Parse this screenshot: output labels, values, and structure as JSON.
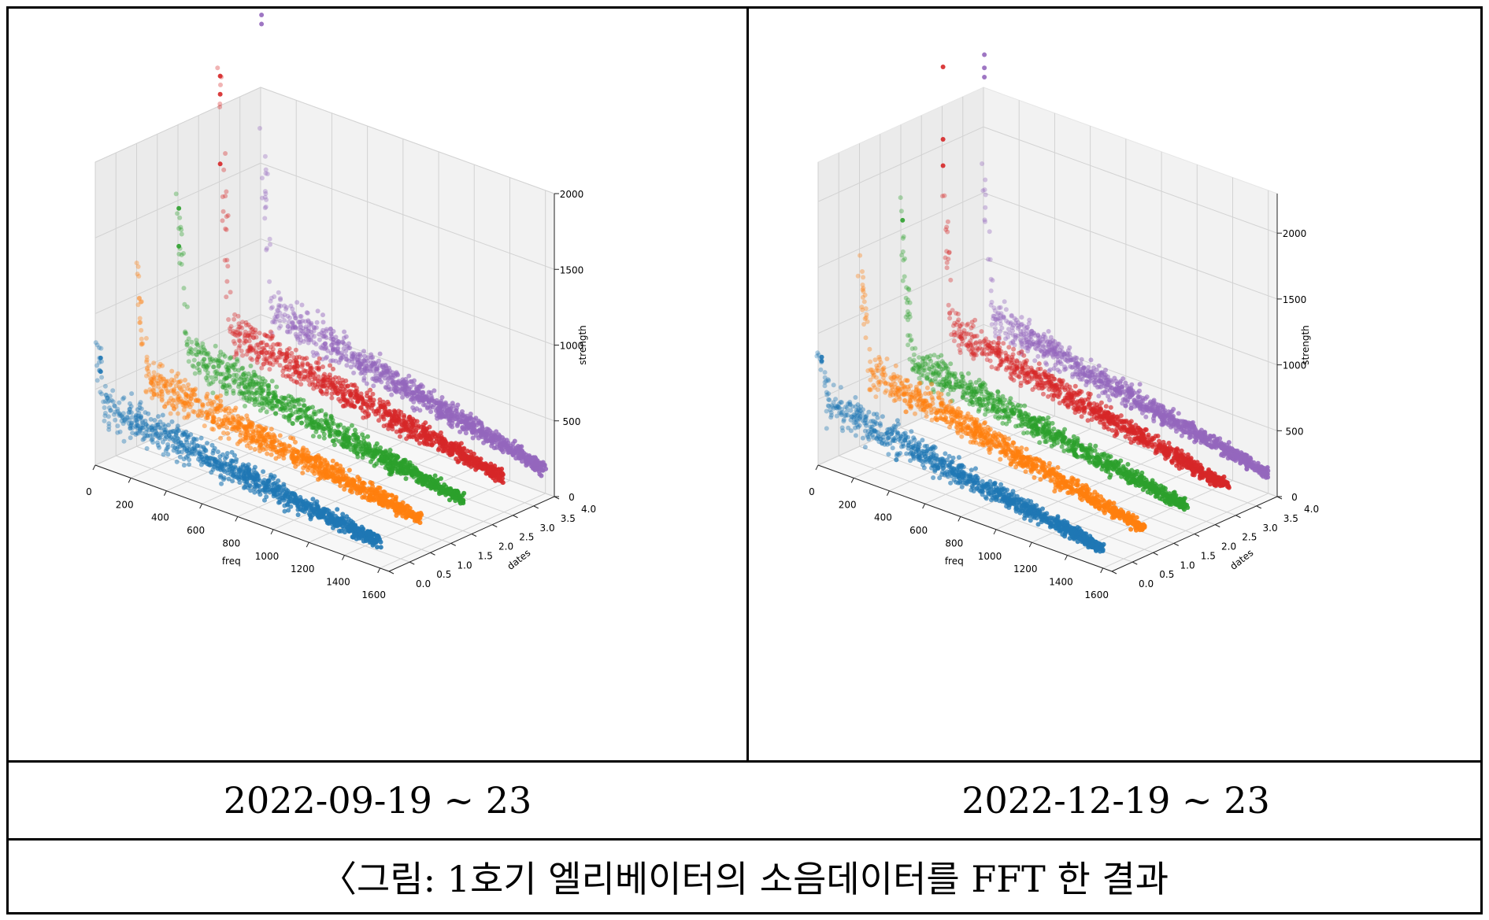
{
  "figure": {
    "caption": "〈그림: 1호기 엘리베이터의 소음데이터를 FFT 한 결과",
    "panel_captions": [
      "2022-09-19 ~ 23",
      "2022-12-19 ~ 23"
    ]
  },
  "chart_data": [
    {
      "type": "scatter3d",
      "title": "",
      "xlabel": "freq",
      "ylabel": "dates",
      "zlabel": "strength",
      "xticks": [
        "0",
        "200",
        "400",
        "600",
        "800",
        "1000",
        "1200",
        "1400",
        "1600"
      ],
      "yticks": [
        "0.0",
        "0.5",
        "1.0",
        "1.5",
        "2.0",
        "2.5",
        "3.0",
        "3.5",
        "4.0"
      ],
      "zticks": [
        "0",
        "500",
        "1000",
        "1500",
        "2000"
      ],
      "xlim": [
        0,
        1650
      ],
      "ylim": [
        0,
        4
      ],
      "zlim": [
        0,
        2000
      ],
      "grid": true,
      "series": [
        {
          "date_index": 0,
          "color": "#1f77b4",
          "peak": 850,
          "band_start": 420,
          "band_end": 170,
          "outliers": [
            [
              30,
              630
            ],
            [
              30,
              720
            ]
          ]
        },
        {
          "date_index": 1,
          "color": "#ff7f0e",
          "peak": 1150,
          "band_start": 480,
          "band_end": 200,
          "outliers": []
        },
        {
          "date_index": 2,
          "color": "#2ca02c",
          "peak": 1600,
          "band_start": 520,
          "band_end": 210,
          "outliers": [
            [
              5,
              1450
            ],
            [
              5,
              1200
            ]
          ]
        },
        {
          "date_index": 3,
          "color": "#d62728",
          "peak": 2300,
          "band_start": 560,
          "band_end": 230,
          "outliers": [
            [
              5,
              2200
            ],
            [
              5,
              2080
            ],
            [
              5,
              1620
            ]
          ]
        },
        {
          "date_index": 4,
          "color": "#9467bd",
          "peak": 1850,
          "band_start": 580,
          "band_end": 160,
          "outliers": [
            [
              5,
              2420
            ],
            [
              5,
              2480
            ]
          ]
        }
      ]
    },
    {
      "type": "scatter3d",
      "title": "",
      "xlabel": "freq",
      "ylabel": "dates",
      "zlabel": "strength",
      "xticks": [
        "0",
        "200",
        "400",
        "600",
        "800",
        "1000",
        "1200",
        "1400",
        "1600"
      ],
      "yticks": [
        "0.0",
        "0.5",
        "1.0",
        "1.5",
        "2.0",
        "2.5",
        "3.0",
        "3.5",
        "4.0"
      ],
      "zticks": [
        "0",
        "500",
        "1000",
        "1500",
        "2000"
      ],
      "xlim": [
        0,
        1650
      ],
      "ylim": [
        0,
        4
      ],
      "zlim": [
        0,
        2300
      ],
      "grid": true,
      "series": [
        {
          "date_index": 0,
          "color": "#1f77b4",
          "peak": 900,
          "band_start": 500,
          "band_end": 150,
          "outliers": [
            [
              20,
              800
            ],
            [
              20,
              830
            ]
          ]
        },
        {
          "date_index": 1,
          "color": "#ff7f0e",
          "peak": 1350,
          "band_start": 620,
          "band_end": 160,
          "outliers": []
        },
        {
          "date_index": 2,
          "color": "#2ca02c",
          "peak": 1700,
          "band_start": 560,
          "band_end": 190,
          "outliers": [
            [
              10,
              1580
            ]
          ]
        },
        {
          "date_index": 3,
          "color": "#d62728",
          "peak": 1700,
          "band_start": 640,
          "band_end": 200,
          "outliers": [
            [
              5,
              2600
            ],
            [
              5,
              2050
            ],
            [
              5,
              1850
            ]
          ]
        },
        {
          "date_index": 4,
          "color": "#9467bd",
          "peak": 1700,
          "band_start": 580,
          "band_end": 150,
          "outliers": [
            [
              5,
              2450
            ],
            [
              5,
              2550
            ],
            [
              5,
              2380
            ]
          ]
        }
      ]
    }
  ]
}
